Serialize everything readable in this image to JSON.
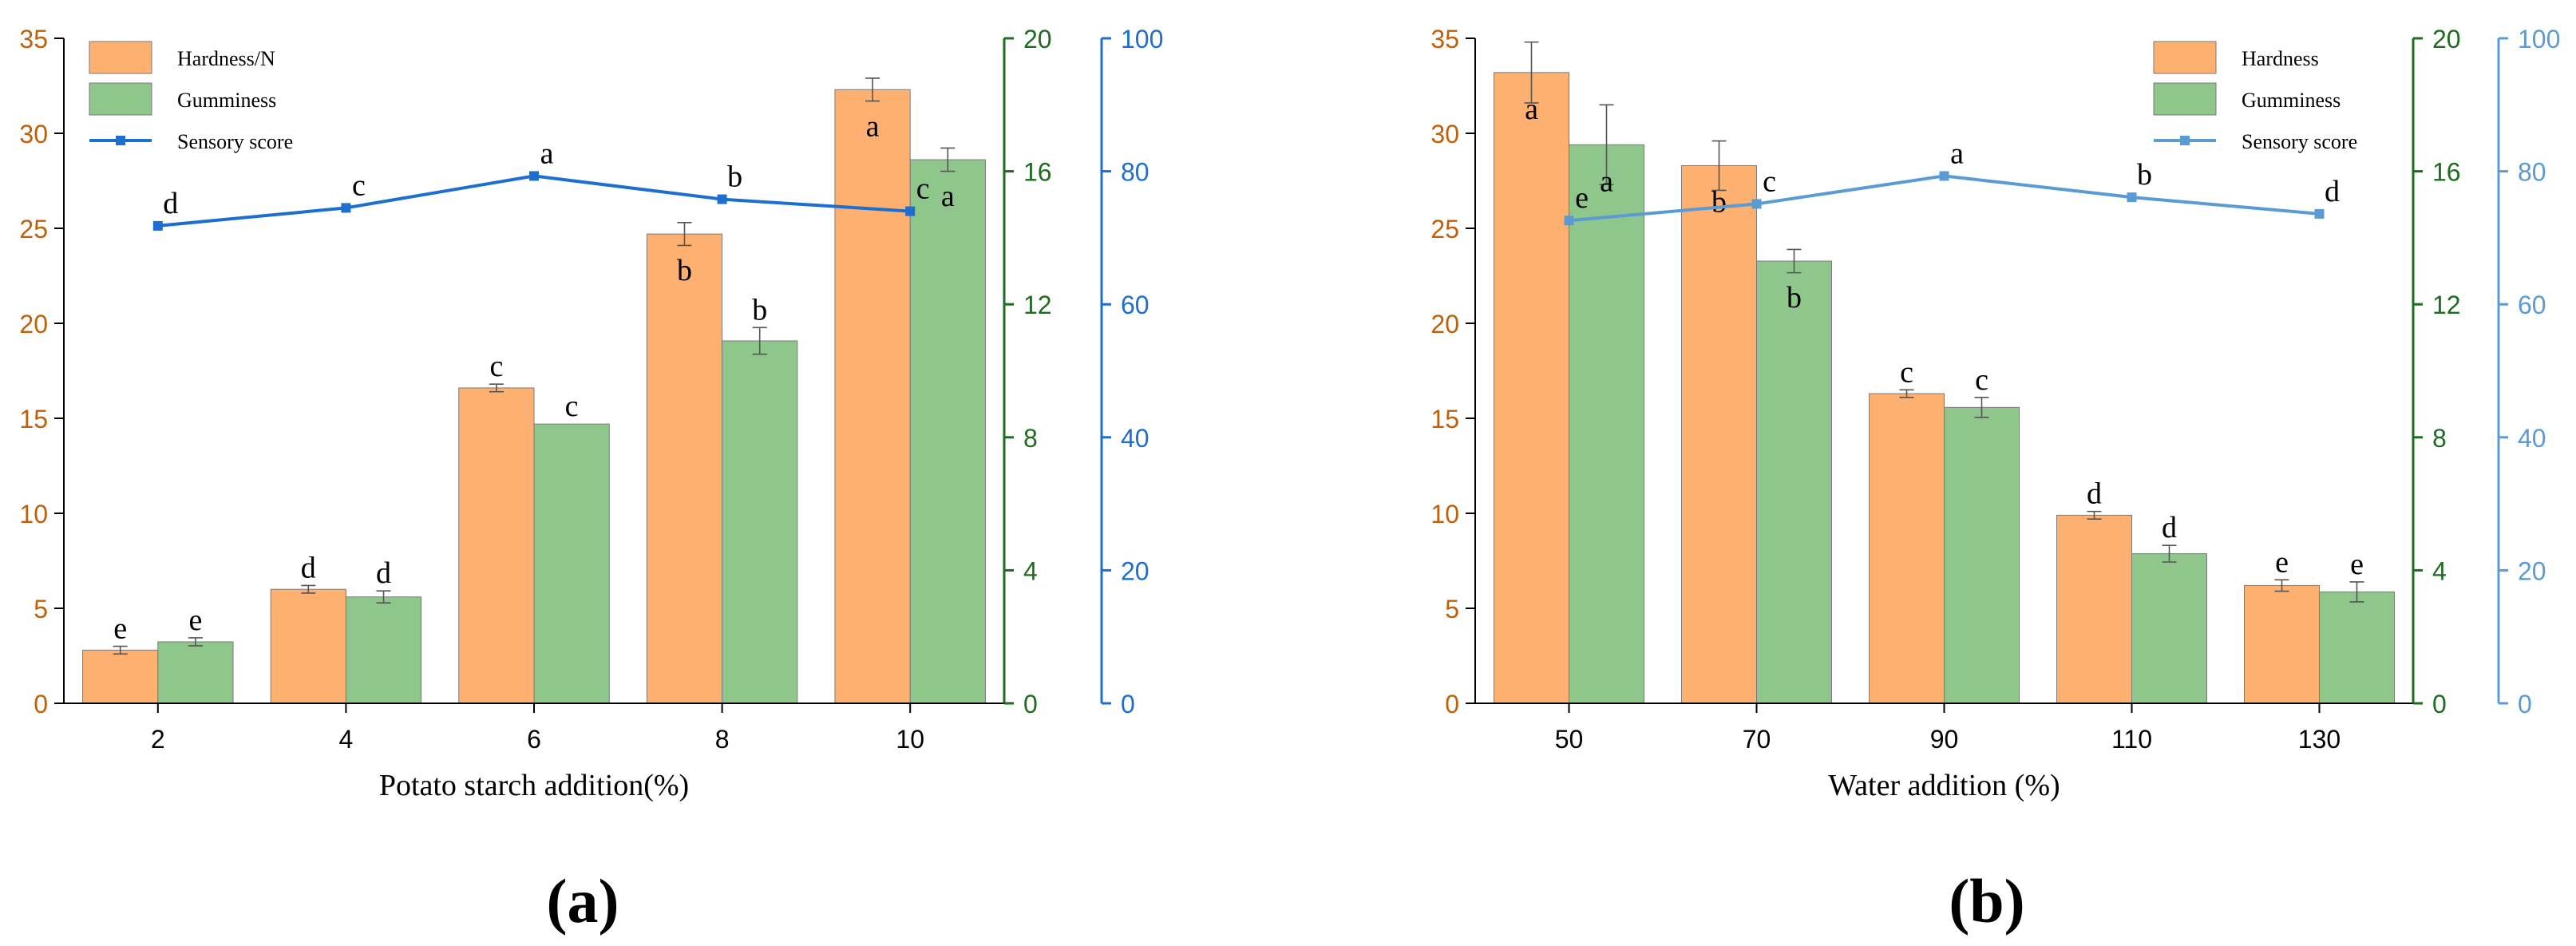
{
  "chart_data": [
    {
      "type": "bar",
      "panel_label": "(a)",
      "xlabel": "Potato starch addition(%)",
      "categories": [
        "2",
        "4",
        "6",
        "8",
        "10"
      ],
      "y_left": {
        "ylim": [
          0,
          35
        ],
        "ticks": [
          "0",
          "5",
          "10",
          "15",
          "20",
          "25",
          "30",
          "35"
        ],
        "color": "#c0600a"
      },
      "y_middle": {
        "ylim": [
          0,
          20
        ],
        "ticks": [
          "0",
          "4",
          "8",
          "12",
          "16",
          "20"
        ],
        "color": "#1f6b1f"
      },
      "y_right": {
        "ylim": [
          0,
          100
        ],
        "ticks": [
          "0",
          "20",
          "40",
          "60",
          "80",
          "100"
        ],
        "color": "#1c6fd1"
      },
      "series": [
        {
          "name": "Hardness/N",
          "type": "bar",
          "axis": "left",
          "color": "#fdb06f",
          "values": [
            2.8,
            6.0,
            16.6,
            24.7,
            32.3
          ],
          "errors": [
            0.2,
            0.2,
            0.2,
            0.6,
            0.6
          ],
          "letters": [
            "e",
            "d",
            "c",
            "b",
            "a"
          ]
        },
        {
          "name": "Gumminess",
          "type": "bar",
          "axis": "middle",
          "color": "#8fc68c",
          "values": [
            1.85,
            3.2,
            8.4,
            10.9,
            16.35
          ],
          "errors": [
            0.12,
            0.18,
            0.0,
            0.4,
            0.35
          ],
          "letters": [
            "e",
            "d",
            "c",
            "b",
            "a"
          ]
        },
        {
          "name": "Sensory score",
          "type": "line",
          "axis": "right",
          "color": "#1c6fd1",
          "values": [
            71.8,
            74.5,
            79.3,
            75.8,
            74.0
          ],
          "letters": [
            "d",
            "c",
            "a",
            "b",
            "c"
          ]
        }
      ]
    },
    {
      "type": "bar",
      "panel_label": "(b)",
      "xlabel": "Water addition (%)",
      "categories": [
        "50",
        "70",
        "90",
        "110",
        "130"
      ],
      "y_left": {
        "ylim": [
          0,
          35
        ],
        "ticks": [
          "0",
          "5",
          "10",
          "15",
          "20",
          "25",
          "30",
          "35"
        ],
        "color": "#c0600a"
      },
      "y_middle": {
        "ylim": [
          0,
          20
        ],
        "ticks": [
          "0",
          "4",
          "8",
          "12",
          "16",
          "20"
        ],
        "color": "#1f6b1f"
      },
      "y_right": {
        "ylim": [
          0,
          100
        ],
        "ticks": [
          "0",
          "20",
          "40",
          "60",
          "80",
          "100"
        ],
        "color": "#5b9bd5"
      },
      "series": [
        {
          "name": "Hardness",
          "type": "bar",
          "axis": "left",
          "color": "#fdb06f",
          "values": [
            33.2,
            28.3,
            16.3,
            9.9,
            6.2
          ],
          "errors": [
            1.6,
            1.3,
            0.2,
            0.2,
            0.3
          ],
          "letters": [
            "a",
            "b",
            "c",
            "d",
            "e"
          ]
        },
        {
          "name": "Gumminess",
          "type": "bar",
          "axis": "middle",
          "color": "#8fc68c",
          "values": [
            16.8,
            13.3,
            8.9,
            4.5,
            3.35
          ],
          "errors": [
            1.2,
            0.35,
            0.3,
            0.25,
            0.3
          ],
          "letters": [
            "a",
            "b",
            "c",
            "d",
            "e"
          ]
        },
        {
          "name": "Sensory score",
          "type": "line",
          "axis": "right",
          "color": "#5b9bd5",
          "values": [
            72.6,
            75.1,
            79.3,
            76.1,
            73.6
          ],
          "letters": [
            "e",
            "c",
            "a",
            "b",
            "d"
          ]
        }
      ]
    }
  ]
}
